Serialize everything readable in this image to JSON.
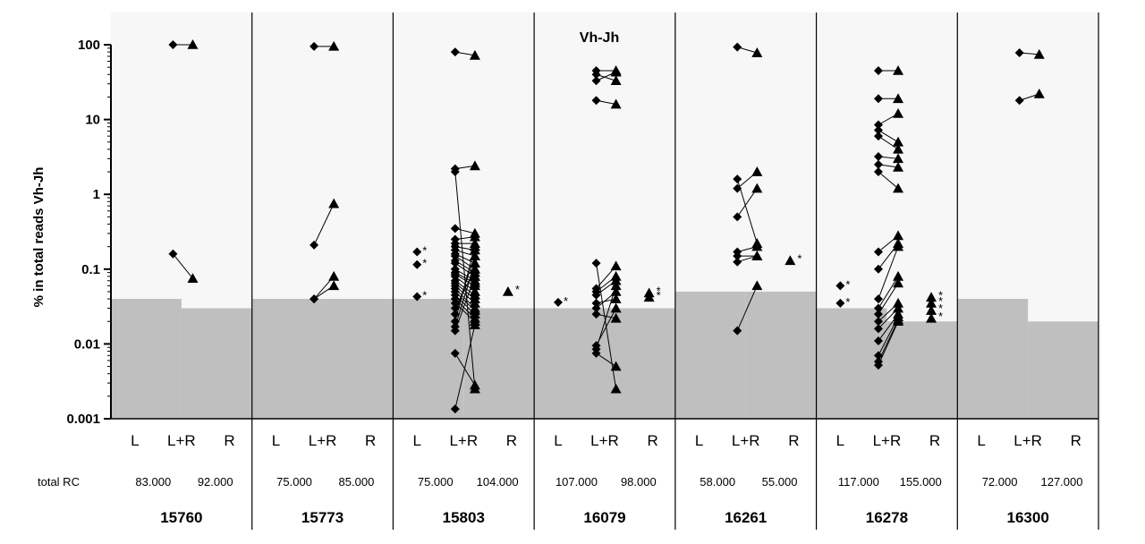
{
  "chart_data": {
    "type": "scatter",
    "title": "Vh-Jh",
    "ylabel": "% in total reads Vh-Jh",
    "yscale": "log",
    "ylim": [
      0.001,
      100
    ],
    "yticks": [
      "0.001",
      "0.01",
      "0.1",
      "1",
      "10",
      "100"
    ],
    "ytick_values": [
      0.001,
      0.01,
      0.1,
      1,
      10,
      100
    ],
    "categories": [
      "L",
      "L+R",
      "R"
    ],
    "rc_label": "total RC",
    "marker_left": "diamond",
    "marker_right": "triangle",
    "colors": {
      "plot_bg": "#f7f7f7",
      "threshold": "#bfbfbf",
      "marker": "#000000"
    },
    "panels": [
      {
        "patient": "15760",
        "rc_left": "83.000",
        "rc_right": "92.000",
        "threshold_left": 0.04,
        "threshold_right": 0.03,
        "L": [],
        "R": [],
        "pairs": [
          [
            100,
            100
          ],
          [
            0.16,
            0.075
          ]
        ]
      },
      {
        "patient": "15773",
        "rc_left": "75.000",
        "rc_right": "85.000",
        "threshold_left": 0.04,
        "threshold_right": 0.04,
        "L": [],
        "R": [],
        "pairs": [
          [
            95,
            95
          ],
          [
            0.21,
            0.75
          ],
          [
            0.04,
            0.08
          ],
          [
            0.04,
            0.06
          ]
        ]
      },
      {
        "patient": "15803",
        "rc_left": "75.000",
        "rc_right": "104.000",
        "threshold_left": 0.04,
        "threshold_right": 0.03,
        "L": [
          0.17,
          0.115,
          0.043
        ],
        "R": [
          0.05
        ],
        "pairs": [
          [
            80,
            72
          ],
          [
            2.2,
            2.4
          ],
          [
            2.0,
            0.0025
          ],
          [
            0.35,
            0.3
          ],
          [
            0.25,
            0.27
          ],
          [
            0.22,
            0.22
          ],
          [
            0.2,
            0.18
          ],
          [
            0.18,
            0.15
          ],
          [
            0.16,
            0.12
          ],
          [
            0.15,
            0.1
          ],
          [
            0.13,
            0.09
          ],
          [
            0.12,
            0.08
          ],
          [
            0.1,
            0.07
          ],
          [
            0.09,
            0.065
          ],
          [
            0.085,
            0.06
          ],
          [
            0.08,
            0.05
          ],
          [
            0.07,
            0.045
          ],
          [
            0.065,
            0.04
          ],
          [
            0.06,
            0.035
          ],
          [
            0.055,
            0.03
          ],
          [
            0.05,
            0.028
          ],
          [
            0.045,
            0.025
          ],
          [
            0.04,
            0.022
          ],
          [
            0.035,
            0.02
          ],
          [
            0.03,
            0.1
          ],
          [
            0.025,
            0.15
          ],
          [
            0.02,
            0.2
          ],
          [
            0.017,
            0.12
          ],
          [
            0.015,
            0.08
          ],
          [
            0.0075,
            0.0028
          ],
          [
            0.00135,
            0.018
          ]
        ]
      },
      {
        "patient": "16079",
        "rc_left": "107.000",
        "rc_right": "98.000",
        "threshold_left": 0.03,
        "threshold_right": 0.03,
        "L": [
          0.036
        ],
        "R": [
          0.048,
          0.042
        ],
        "pairs": [
          [
            45,
            45
          ],
          [
            40,
            33
          ],
          [
            33,
            43
          ],
          [
            18,
            16
          ],
          [
            0.12,
            0.0025
          ],
          [
            0.055,
            0.11
          ],
          [
            0.05,
            0.08
          ],
          [
            0.045,
            0.07
          ],
          [
            0.035,
            0.04
          ],
          [
            0.03,
            0.05
          ],
          [
            0.025,
            0.022
          ],
          [
            0.0095,
            0.03
          ],
          [
            0.0085,
            0.06
          ],
          [
            0.0075,
            0.005
          ]
        ]
      },
      {
        "patient": "16261",
        "rc_left": "58.000",
        "rc_right": "55.000",
        "threshold_left": 0.05,
        "threshold_right": 0.05,
        "L": [],
        "R": [
          0.13
        ],
        "pairs": [
          [
            93,
            78
          ],
          [
            1.6,
            0.22
          ],
          [
            1.2,
            2.0
          ],
          [
            0.5,
            1.2
          ],
          [
            0.17,
            0.2
          ],
          [
            0.15,
            0.15
          ],
          [
            0.125,
            0.15
          ],
          [
            0.015,
            0.06
          ]
        ]
      },
      {
        "patient": "16278",
        "rc_left": "117.000",
        "rc_right": "155.000",
        "threshold_left": 0.03,
        "threshold_right": 0.02,
        "L": [
          0.06,
          0.035
        ],
        "R": [
          0.042,
          0.035,
          0.028,
          0.022
        ],
        "pairs": [
          [
            45,
            45
          ],
          [
            19,
            19
          ],
          [
            8.5,
            12
          ],
          [
            7.2,
            5.0
          ],
          [
            6.0,
            4.0
          ],
          [
            3.2,
            3.0
          ],
          [
            2.5,
            2.3
          ],
          [
            2.0,
            1.2
          ],
          [
            0.17,
            0.28
          ],
          [
            0.1,
            0.22
          ],
          [
            0.04,
            0.2
          ],
          [
            0.03,
            0.08
          ],
          [
            0.025,
            0.065
          ],
          [
            0.02,
            0.035
          ],
          [
            0.016,
            0.03
          ],
          [
            0.011,
            0.025
          ],
          [
            0.007,
            0.023
          ],
          [
            0.0058,
            0.021
          ],
          [
            0.0052,
            0.02
          ]
        ]
      },
      {
        "patient": "16300",
        "rc_left": "72.000",
        "rc_right": "127.000",
        "threshold_left": 0.04,
        "threshold_right": 0.02,
        "L": [],
        "R": [],
        "pairs": [
          [
            78,
            74
          ],
          [
            18,
            22
          ]
        ]
      }
    ]
  }
}
